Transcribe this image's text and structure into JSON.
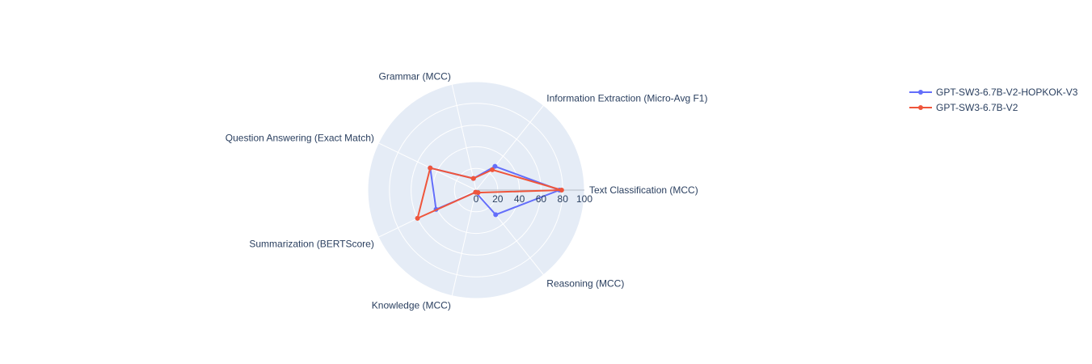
{
  "chart_data": {
    "type": "radar",
    "axes": [
      "Text Classification (MCC)",
      "Information Extraction (Micro-Avg F1)",
      "Grammar (MCC)",
      "Question Answering (Exact Match)",
      "Summarization (BERTScore)",
      "Knowledge (MCC)",
      "Reasoning (MCC)"
    ],
    "radial_range": [
      0,
      100
    ],
    "radial_ticks": [
      "0",
      "20",
      "40",
      "60",
      "80",
      "100"
    ],
    "radial_tick_values": [
      0,
      20,
      40,
      60,
      80,
      100
    ],
    "series": [
      {
        "name": "GPT-SW3-6.7B-V2-HOPKOK-V3",
        "color": "#636efa",
        "values": [
          77,
          28,
          11,
          47,
          41,
          2,
          29
        ]
      },
      {
        "name": "GPT-SW3-6.7B-V2",
        "color": "#ef553b",
        "values": [
          79,
          24,
          11,
          47,
          60,
          2,
          3
        ]
      }
    ],
    "legend_position": "top-right",
    "background_color": "#e5ecf6",
    "grid": true
  }
}
